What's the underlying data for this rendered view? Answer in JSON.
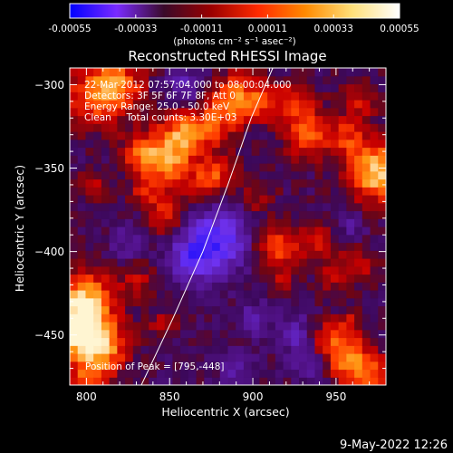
{
  "colorbar": {
    "ticks": [
      "-0.00055",
      "-0.00033",
      "-0.00011",
      "0.00011",
      "0.00033",
      "0.00055"
    ],
    "tick_values": [
      -0.00055,
      -0.00033,
      -0.00011,
      0.00011,
      0.00033,
      0.00055
    ],
    "units_text": "(photons cm⁻² s⁻¹ asec⁻²)",
    "gradient_colors": [
      "#0000ff",
      "#7a2bff",
      "#3a0a2a",
      "#9a0000",
      "#ff2a00",
      "#ff8a00",
      "#ffe07a",
      "#ffffff"
    ]
  },
  "chart_data": {
    "type": "heatmap",
    "title": "Reconstructed RHESSI Image",
    "xlabel": "Heliocentric X (arcsec)",
    "ylabel": "Heliocentric Y (arcsec)",
    "xlim": [
      790,
      980
    ],
    "ylim": [
      -480,
      -290
    ],
    "x_ticks": [
      800,
      850,
      900,
      950
    ],
    "y_ticks": [
      -300,
      -350,
      -400,
      -450
    ],
    "value_range": [
      -0.00055,
      0.00055
    ],
    "annotations": [
      "22-Mar-2012 07:57:04.000 to 08:00:04.000",
      "Detectors: 3F 5F 6F 7F 8F, Att 0",
      "Energy Range: 25.0 - 50.0 keV",
      "Clean     Total counts: 3.30E+03"
    ],
    "peak_label": "Position of Peak = [795,-448]",
    "peak_position": [
      795,
      -448
    ],
    "limb_curve": [
      [
        833,
        -480
      ],
      [
        852,
        -440
      ],
      [
        870,
        -400
      ],
      [
        885,
        -360
      ],
      [
        899,
        -320
      ],
      [
        912,
        -290
      ]
    ],
    "hot_regions": [
      {
        "x": 806,
        "y": -305,
        "r": 14,
        "v": 0.0003
      },
      {
        "x": 820,
        "y": -300,
        "r": 10,
        "v": 0.00025
      },
      {
        "x": 848,
        "y": -345,
        "r": 12,
        "v": 0.0004
      },
      {
        "x": 858,
        "y": -328,
        "r": 8,
        "v": 0.0003
      },
      {
        "x": 832,
        "y": -340,
        "r": 8,
        "v": 0.0002
      },
      {
        "x": 888,
        "y": -308,
        "r": 10,
        "v": 0.00035
      },
      {
        "x": 875,
        "y": -325,
        "r": 9,
        "v": 0.00025
      },
      {
        "x": 880,
        "y": -352,
        "r": 8,
        "v": 0.0002
      },
      {
        "x": 905,
        "y": -310,
        "r": 8,
        "v": 0.0002
      },
      {
        "x": 925,
        "y": -310,
        "r": 9,
        "v": 0.00022
      },
      {
        "x": 933,
        "y": -330,
        "r": 10,
        "v": 0.0003
      },
      {
        "x": 956,
        "y": -332,
        "r": 8,
        "v": 0.00022
      },
      {
        "x": 975,
        "y": -352,
        "r": 12,
        "v": 0.0005
      },
      {
        "x": 966,
        "y": -310,
        "r": 8,
        "v": 0.00018
      },
      {
        "x": 872,
        "y": -360,
        "r": 7,
        "v": 0.0002
      },
      {
        "x": 848,
        "y": -378,
        "r": 8,
        "v": 0.00025
      },
      {
        "x": 834,
        "y": -364,
        "r": 6,
        "v": 0.00015
      },
      {
        "x": 804,
        "y": -362,
        "r": 7,
        "v": 0.00015
      },
      {
        "x": 904,
        "y": -368,
        "r": 7,
        "v": 0.00016
      },
      {
        "x": 914,
        "y": -398,
        "r": 9,
        "v": 0.00028
      },
      {
        "x": 938,
        "y": -394,
        "r": 8,
        "v": 0.0002
      },
      {
        "x": 948,
        "y": -414,
        "r": 7,
        "v": 0.00015
      },
      {
        "x": 964,
        "y": -408,
        "r": 8,
        "v": 0.00018
      },
      {
        "x": 918,
        "y": -418,
        "r": 6,
        "v": 0.00014
      },
      {
        "x": 800,
        "y": -428,
        "r": 12,
        "v": 0.0004
      },
      {
        "x": 795,
        "y": -448,
        "r": 12,
        "v": 0.00055
      },
      {
        "x": 812,
        "y": -458,
        "r": 10,
        "v": 0.0003
      },
      {
        "x": 802,
        "y": -475,
        "r": 8,
        "v": 0.00025
      },
      {
        "x": 832,
        "y": -418,
        "r": 8,
        "v": 0.00015
      },
      {
        "x": 846,
        "y": -444,
        "r": 6,
        "v": 0.00015
      },
      {
        "x": 942,
        "y": -452,
        "r": 8,
        "v": 0.0002
      },
      {
        "x": 956,
        "y": -462,
        "r": 10,
        "v": 0.00032
      },
      {
        "x": 970,
        "y": -476,
        "r": 10,
        "v": 0.0003
      },
      {
        "x": 958,
        "y": -442,
        "r": 6,
        "v": 0.00014
      }
    ],
    "cold_regions": [
      {
        "x": 878,
        "y": -393,
        "r": 14,
        "v": -0.00035
      },
      {
        "x": 862,
        "y": -405,
        "r": 9,
        "v": -0.00025
      },
      {
        "x": 860,
        "y": -300,
        "r": 8,
        "v": -0.00018
      },
      {
        "x": 928,
        "y": -450,
        "r": 8,
        "v": -0.00022
      },
      {
        "x": 936,
        "y": -468,
        "r": 7,
        "v": -0.0002
      },
      {
        "x": 825,
        "y": -395,
        "r": 7,
        "v": -0.00015
      },
      {
        "x": 902,
        "y": -440,
        "r": 7,
        "v": -0.00016
      },
      {
        "x": 960,
        "y": -385,
        "r": 6,
        "v": -0.00012
      },
      {
        "x": 890,
        "y": -470,
        "r": 7,
        "v": -0.00016
      }
    ]
  },
  "footer": {
    "timestamp": "9-May-2022 12:26"
  }
}
